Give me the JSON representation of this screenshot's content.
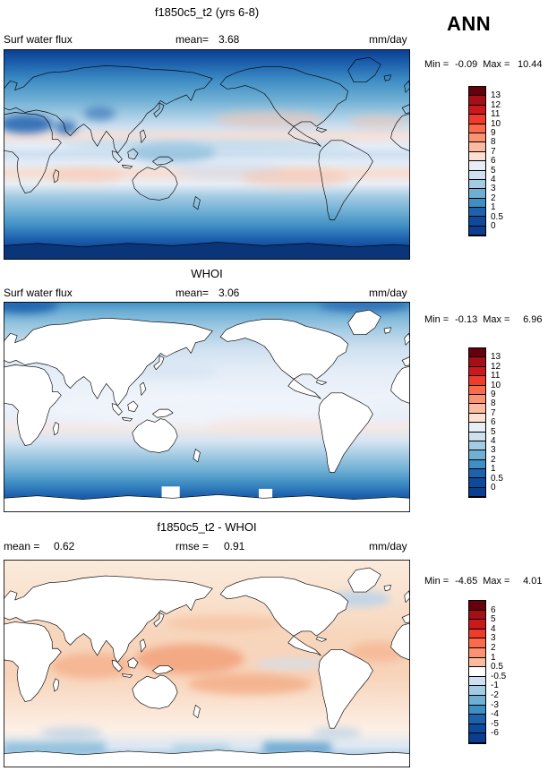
{
  "figure": {
    "season_label": "ANN"
  },
  "panels": [
    {
      "title": "f1850c5_t2 (yrs 6-8)",
      "var_label": "Surf water flux",
      "mean_label": "mean=",
      "mean_value": "3.68",
      "units_label": "mm/day",
      "min_label": "Min =",
      "min_value": "-0.09",
      "max_label": "Max =",
      "max_value": "10.44",
      "colorbar": {
        "labels": [
          "13",
          "12",
          "11",
          "10",
          "9",
          "8",
          "7",
          "6",
          "5",
          "4",
          "3",
          "2",
          "1",
          "0.5",
          "0"
        ],
        "colors": [
          "#67000d",
          "#a50f15",
          "#cb181d",
          "#ef3b2c",
          "#fb6a4a",
          "#fc9272",
          "#fcbba1",
          "#fee0d2",
          "#e8eef6",
          "#cfe0f0",
          "#a3cbe3",
          "#6fafd4",
          "#3f8ec4",
          "#1e62ae",
          "#0d4a9b",
          "#0b3d91"
        ]
      }
    },
    {
      "title": "WHOI",
      "var_label": "Surf water flux",
      "mean_label": "mean=",
      "mean_value": "3.06",
      "units_label": "mm/day",
      "min_label": "Min =",
      "min_value": "-0.13",
      "max_label": "Max =",
      "max_value": "6.96",
      "colorbar": {
        "labels": [
          "13",
          "12",
          "11",
          "10",
          "9",
          "8",
          "7",
          "6",
          "5",
          "4",
          "3",
          "2",
          "1",
          "0.5",
          "0"
        ],
        "colors": [
          "#67000d",
          "#a50f15",
          "#cb181d",
          "#ef3b2c",
          "#fb6a4a",
          "#fc9272",
          "#fcbba1",
          "#fee0d2",
          "#e8eef6",
          "#cfe0f0",
          "#a3cbe3",
          "#6fafd4",
          "#3f8ec4",
          "#1e62ae",
          "#0d4a9b",
          "#0b3d91"
        ]
      }
    },
    {
      "title": "f1850c5_t2 - WHOI",
      "mean_label": "mean =",
      "mean_value": "0.62",
      "rmse_label": "rmse =",
      "rmse_value": "0.91",
      "units_label": "mm/day",
      "min_label": "Min =",
      "min_value": "-4.65",
      "max_label": "Max =",
      "max_value": "4.01",
      "colorbar": {
        "labels": [
          "6",
          "5",
          "4",
          "3",
          "2",
          "1",
          "0.5",
          "-0.5",
          "-1",
          "-2",
          "-3",
          "-4",
          "-5",
          "-6"
        ],
        "colors": [
          "#67000d",
          "#a50f15",
          "#cb181d",
          "#ef3b2c",
          "#fb6a4a",
          "#fc9272",
          "#fcbba1",
          "#ffffff",
          "#cfe0f0",
          "#a3cbe3",
          "#6fafd4",
          "#3f8ec4",
          "#1e62ae",
          "#0d4a9b",
          "#0b3d91"
        ]
      }
    }
  ],
  "chart_data": {
    "type": "heatmap",
    "variable": "Surf water flux",
    "season": "ANN",
    "units": "mm/day",
    "projection": "global lat-lon map, equirectangular, Pacific-centered",
    "panels": [
      {
        "title": "f1850c5_t2 (yrs 6-8)",
        "role": "model",
        "mean": 3.68,
        "min": -0.09,
        "max": 10.44,
        "contour_levels": [
          0,
          0.5,
          1,
          2,
          3,
          4,
          5,
          6,
          7,
          8,
          9,
          10,
          11,
          12,
          13
        ]
      },
      {
        "title": "WHOI",
        "role": "observation",
        "mean": 3.06,
        "min": -0.13,
        "max": 6.96,
        "contour_levels": [
          0,
          0.5,
          1,
          2,
          3,
          4,
          5,
          6,
          7,
          8,
          9,
          10,
          11,
          12,
          13
        ]
      },
      {
        "title": "f1850c5_t2 - WHOI",
        "role": "difference",
        "mean": 0.62,
        "rmse": 0.91,
        "min": -4.65,
        "max": 4.01,
        "contour_levels": [
          -6,
          -5,
          -4,
          -3,
          -2,
          -1,
          -0.5,
          0.5,
          1,
          2,
          3,
          4,
          5,
          6
        ]
      }
    ]
  }
}
